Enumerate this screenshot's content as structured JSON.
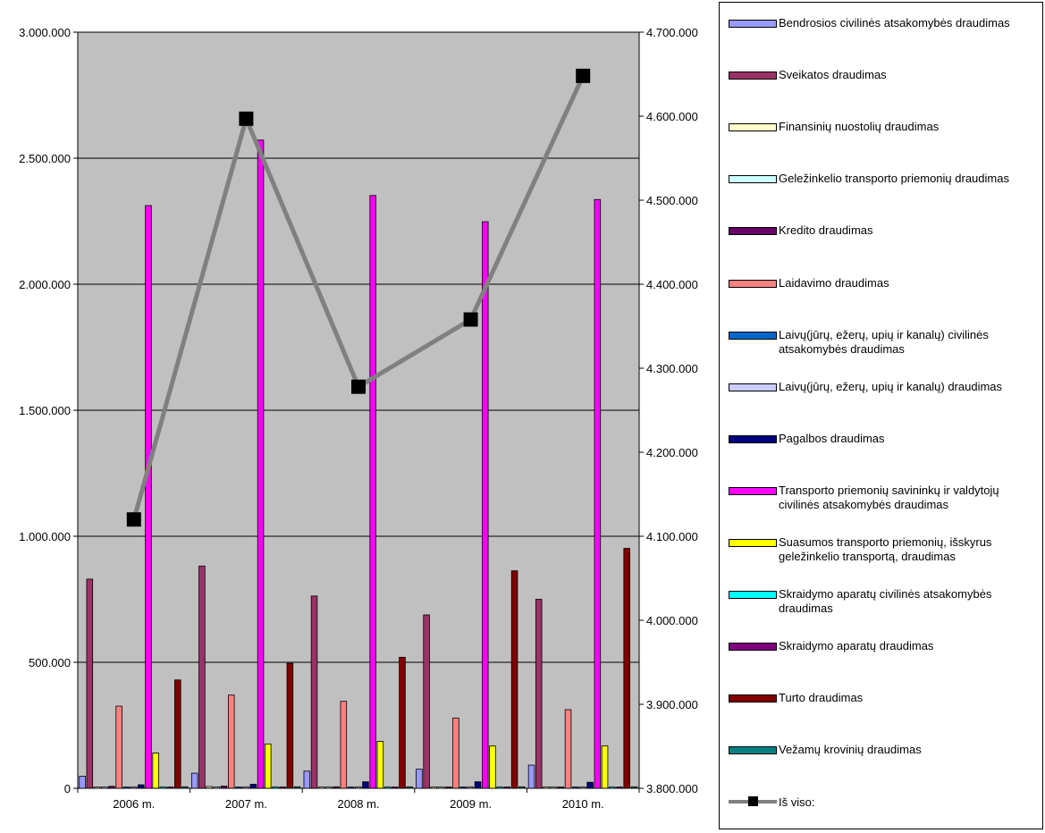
{
  "chart_data": {
    "type": "bar",
    "categories": [
      "2006 m.",
      "2007 m.",
      "2008 m.",
      "2009 m.",
      "2010 m."
    ],
    "y_left": {
      "ylim": [
        0,
        3000000
      ],
      "ticks": [
        0,
        500000,
        1000000,
        1500000,
        2000000,
        2500000,
        3000000
      ],
      "tick_labels": [
        "0",
        "500.000",
        "1.000.000",
        "1.500.000",
        "2.000.000",
        "2.500.000",
        "3.000.000"
      ]
    },
    "y_right": {
      "ylim": [
        3800000,
        4700000
      ],
      "ticks": [
        3800000,
        3900000,
        4000000,
        4100000,
        4200000,
        4300000,
        4400000,
        4500000,
        4600000,
        4700000
      ],
      "tick_labels": [
        "3.800.000",
        "3.900.000",
        "4.000.000",
        "4.100.000",
        "4.200.000",
        "4.300.000",
        "4.400.000",
        "4.500.000",
        "4.600.000",
        "4.700.000"
      ]
    },
    "grid": true,
    "legend_position": "right",
    "series": [
      {
        "name": "Bendrosios civilinės atsakomybės draudimas",
        "color": "#9999ff",
        "values": [
          48000,
          60000,
          68000,
          76000,
          92000
        ]
      },
      {
        "name": "Sveikatos draudimas",
        "color": "#993366",
        "values": [
          830000,
          882000,
          763000,
          688000,
          750000
        ]
      },
      {
        "name": "Finansinių nuostolių draudimas",
        "color": "#ffffcc",
        "values": [
          3000,
          7000,
          3000,
          2000,
          2000
        ]
      },
      {
        "name": "Geležinkelio transporto priemonių draudimas",
        "color": "#ccffff",
        "values": [
          1000,
          1000,
          1000,
          1000,
          1000
        ]
      },
      {
        "name": "Kredito draudimas",
        "color": "#660066",
        "values": [
          8000,
          9000,
          6000,
          2000,
          2000
        ]
      },
      {
        "name": "Laidavimo draudimas",
        "color": "#ff8080",
        "values": [
          326000,
          370000,
          345000,
          279000,
          312000
        ]
      },
      {
        "name": "Laivų(jūrų, ežerų, upių ir kanalų) civilinės atsakomybės draudimas",
        "color": "#0066cc",
        "values": [
          1000,
          1000,
          1000,
          1000,
          1000
        ]
      },
      {
        "name": "Laivų(jūrų, ežerų, upių ir kanalų) draudimas",
        "color": "#ccccff",
        "values": [
          2000,
          2000,
          2000,
          2000,
          2000
        ]
      },
      {
        "name": "Pagalbos draudimas",
        "color": "#000080",
        "values": [
          14000,
          16000,
          26000,
          26000,
          24000
        ]
      },
      {
        "name": "Transporto priemonių savininkų ir valdytojų civilinės atsakomybės draudimas",
        "color": "#ff00ff",
        "values": [
          2312000,
          2572000,
          2352000,
          2248000,
          2336000
        ]
      },
      {
        "name": "Suasumos transporto priemonių, išskyrus geležinkelio transportą, draudimas",
        "color": "#ffff00",
        "values": [
          140000,
          176000,
          186000,
          168000,
          168000
        ]
      },
      {
        "name": "Skraidymo aparatų civilinės atsakomybės draudimas",
        "color": "#00ffff",
        "values": [
          1000,
          1000,
          1000,
          1000,
          1000
        ]
      },
      {
        "name": "Skraidymo aparatų draudimas",
        "color": "#800080",
        "values": [
          2000,
          2000,
          2000,
          2000,
          2000
        ]
      },
      {
        "name": "Turto draudimas",
        "color": "#800000",
        "values": [
          430000,
          496000,
          520000,
          863000,
          952000
        ]
      },
      {
        "name": "Vežamų krovinių draudimas",
        "color": "#008080",
        "values": [
          6000,
          6000,
          6000,
          6000,
          6000
        ]
      }
    ],
    "total_series": {
      "name": "Iš viso:",
      "color": "#808080",
      "marker_color": "#000000",
      "axis": "right",
      "values": [
        4120000,
        4597000,
        4278000,
        4358000,
        4648000
      ]
    }
  }
}
